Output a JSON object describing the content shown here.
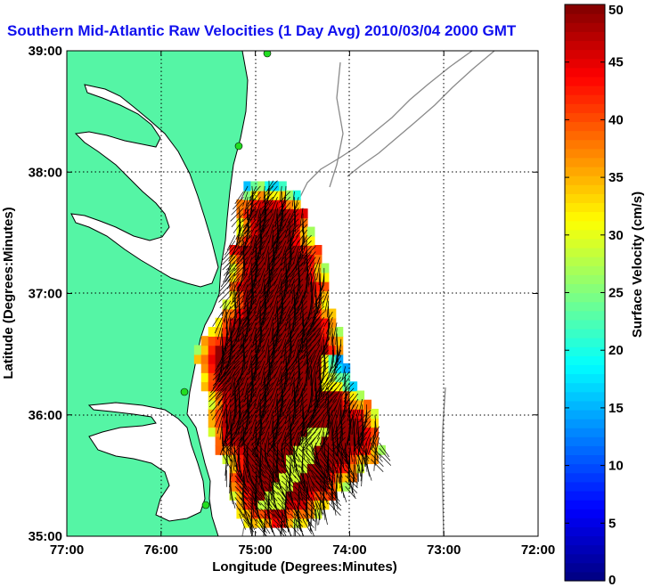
{
  "chart_data": {
    "type": "heatmap",
    "title": "Southern Mid-Atlantic Raw Velocities (1 Day Avg) 2010/03/04 2000 GMT",
    "xlabel": "Longitude (Degrees:Minutes)",
    "ylabel": "Latitude (Degrees:Minutes)",
    "xlim": [
      -77,
      -72
    ],
    "ylim": [
      35,
      39
    ],
    "x_ticks": [
      {
        "value": -77,
        "label": "77:00"
      },
      {
        "value": -76,
        "label": "76:00"
      },
      {
        "value": -75,
        "label": "75:00"
      },
      {
        "value": -74,
        "label": "74:00"
      },
      {
        "value": -73,
        "label": "73:00"
      },
      {
        "value": -72,
        "label": "72:00"
      }
    ],
    "y_ticks": [
      {
        "value": 35,
        "label": "35:00"
      },
      {
        "value": 36,
        "label": "36:00"
      },
      {
        "value": 37,
        "label": "37:00"
      },
      {
        "value": 38,
        "label": "38:00"
      },
      {
        "value": 39,
        "label": "39:00"
      }
    ],
    "grid": true,
    "colorbar": {
      "label": "Surface Velocity (cm/s)",
      "range": [
        0,
        50
      ],
      "ticks": [
        0,
        5,
        10,
        15,
        20,
        25,
        30,
        35,
        40,
        45,
        50
      ],
      "colormap": "jet",
      "placement": "right"
    },
    "colors": {
      "land": "#55f5a5",
      "coastline": "#000000",
      "bathymetry": "#8a8a8a",
      "arrows": "#000000",
      "stations": "#22dd22",
      "title": "#1010ee"
    }
  }
}
